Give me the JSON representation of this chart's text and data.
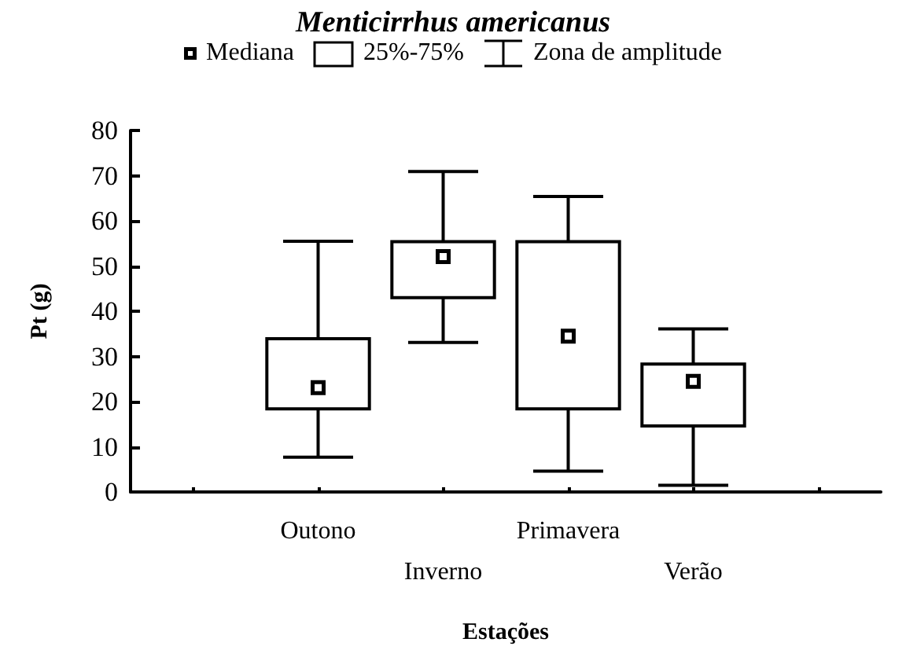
{
  "chart_data": {
    "type": "box",
    "title": "Menticirrhus americanus",
    "xlabel": "Estações",
    "ylabel": "Pt (g)",
    "categories": [
      null,
      "Outono",
      "Inverno",
      "Primavera",
      "Verão",
      null
    ],
    "ylim": [
      0,
      80
    ],
    "yticks": [
      0,
      10,
      20,
      30,
      40,
      50,
      60,
      70,
      80
    ],
    "legend": "top",
    "marker": "square",
    "annotations": [
      "Mediana",
      "Zona de amplitude"
    ],
    "series": [
      {
        "name": "25%-75%",
        "color": "#000000",
        "boxes": [
          null,
          {
            "low": 7.7,
            "q1": 18.4,
            "median": 23.1,
            "q3": 33.9,
            "high": 55.5
          },
          {
            "low": 33.1,
            "q1": 43.0,
            "median": 52.1,
            "q3": 55.4,
            "high": 70.9
          },
          {
            "low": 4.6,
            "q1": 18.4,
            "median": 34.5,
            "q3": 55.4,
            "high": 65.4
          },
          {
            "low": 1.5,
            "q1": 14.6,
            "median": 24.5,
            "q3": 28.3,
            "high": 36.1
          },
          null
        ]
      }
    ]
  }
}
